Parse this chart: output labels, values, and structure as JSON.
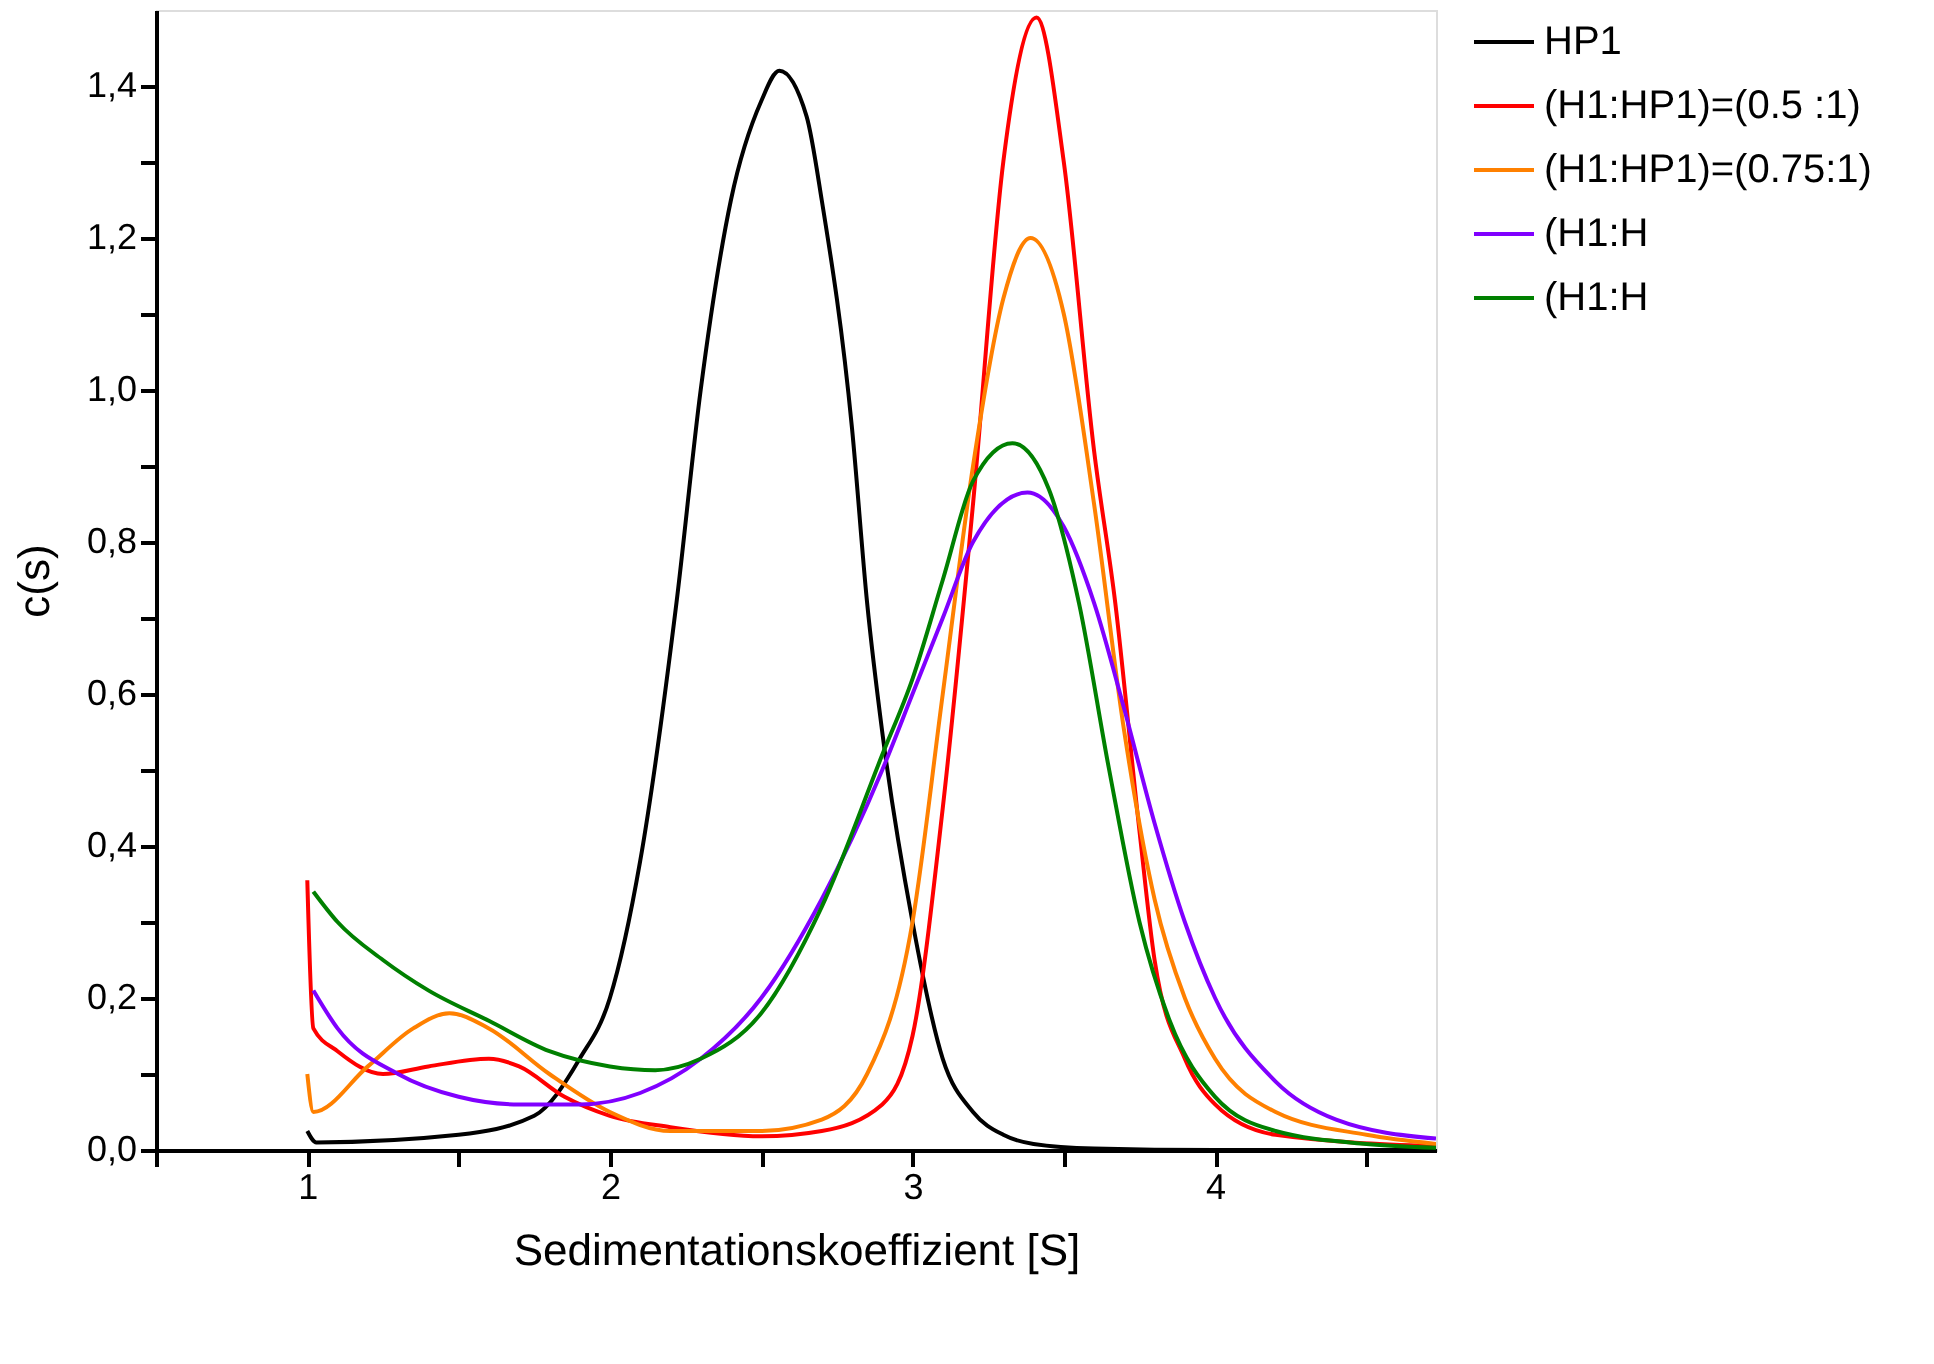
{
  "chart_data": {
    "type": "line",
    "xlabel": "Sedimentationskoeffizient [S]",
    "ylabel": "c(s)",
    "xlim": [
      0.5,
      4.73
    ],
    "ylim": [
      0,
      1.5
    ],
    "xticks": [
      {
        "value": 0.5,
        "label": null
      },
      1,
      {
        "value": 1.5,
        "label": null
      },
      2,
      {
        "value": 2.5,
        "label": null
      },
      3,
      {
        "value": 3.5,
        "label": null
      },
      4,
      {
        "value": 4.5,
        "label": null
      }
    ],
    "yticks": [
      {
        "value": 0,
        "label": "0,0"
      },
      {
        "value": 0.1,
        "label": null
      },
      {
        "value": 0.2,
        "label": "0,2"
      },
      {
        "value": 0.3,
        "label": null
      },
      {
        "value": 0.4,
        "label": "0,4"
      },
      {
        "value": 0.5,
        "label": null
      },
      {
        "value": 0.6,
        "label": "0,6"
      },
      {
        "value": 0.7,
        "label": null
      },
      {
        "value": 0.8,
        "label": "0,8"
      },
      {
        "value": 0.9,
        "label": null
      },
      {
        "value": 1.0,
        "label": "1,0"
      },
      {
        "value": 1.1,
        "label": null
      },
      {
        "value": 1.2,
        "label": "1,2"
      },
      {
        "value": 1.3,
        "label": null
      },
      {
        "value": 1.4,
        "label": "1,4"
      }
    ],
    "grid": false,
    "legend": "right",
    "line_style": "solid",
    "marker": "none",
    "series": [
      {
        "name": "HP1",
        "color": "#000000",
        "x": [
          1.0,
          1.03,
          1.5,
          1.75,
          1.9,
          2.0,
          2.1,
          2.22,
          2.3,
          2.4,
          2.5,
          2.56,
          2.65,
          2.7,
          2.8,
          2.85,
          2.9,
          3.0,
          3.1,
          3.2,
          3.3,
          3.4,
          3.6,
          4.0,
          4.73
        ],
        "values": [
          0.025,
          0.01,
          0.02,
          0.045,
          0.12,
          0.2,
          0.38,
          0.72,
          1.0,
          1.25,
          1.38,
          1.42,
          1.36,
          1.25,
          0.95,
          0.72,
          0.55,
          0.3,
          0.12,
          0.05,
          0.02,
          0.008,
          0.002,
          0.0,
          0.0
        ]
      },
      {
        "name": "(H1:HP1)=(0.5  :1)",
        "color": "#ff0000",
        "x": [
          1.0,
          1.02,
          1.1,
          1.25,
          1.4,
          1.6,
          1.7,
          1.85,
          2.0,
          2.2,
          2.5,
          2.7,
          2.9,
          3.0,
          3.1,
          3.2,
          3.3,
          3.41,
          3.5,
          3.6,
          3.67,
          3.75,
          3.8,
          3.9,
          4.0,
          4.2,
          4.73
        ],
        "values": [
          0.355,
          0.16,
          0.13,
          0.1,
          0.11,
          0.12,
          0.11,
          0.07,
          0.045,
          0.03,
          0.018,
          0.025,
          0.06,
          0.15,
          0.45,
          0.85,
          1.3,
          1.49,
          1.3,
          0.92,
          0.72,
          0.42,
          0.25,
          0.12,
          0.06,
          0.02,
          0.005
        ]
      },
      {
        "name": "(H1:HP1)=(0.75:1)",
        "color": "#ff8000",
        "x": [
          1.0,
          1.02,
          1.2,
          1.35,
          1.47,
          1.6,
          1.8,
          2.0,
          2.2,
          2.5,
          2.7,
          2.85,
          3.0,
          3.1,
          3.2,
          3.3,
          3.39,
          3.5,
          3.6,
          3.7,
          3.8,
          3.9,
          4.0,
          4.2,
          4.5,
          4.73
        ],
        "values": [
          0.1,
          0.05,
          0.11,
          0.16,
          0.18,
          0.16,
          0.1,
          0.05,
          0.025,
          0.025,
          0.04,
          0.1,
          0.3,
          0.6,
          0.9,
          1.12,
          1.2,
          1.1,
          0.85,
          0.55,
          0.33,
          0.2,
          0.12,
          0.05,
          0.02,
          0.008
        ]
      },
      {
        "name": "(H1:H",
        "color": "#8000ff",
        "x": [
          1.02,
          1.1,
          1.3,
          1.5,
          1.7,
          1.9,
          2.1,
          2.3,
          2.5,
          2.7,
          2.9,
          3.0,
          3.1,
          3.2,
          3.38,
          3.5,
          3.6,
          3.7,
          3.8,
          3.9,
          4.0,
          4.2,
          4.4,
          4.73
        ],
        "values": [
          0.21,
          0.16,
          0.1,
          0.07,
          0.06,
          0.06,
          0.075,
          0.12,
          0.2,
          0.33,
          0.5,
          0.6,
          0.7,
          0.8,
          0.865,
          0.82,
          0.72,
          0.58,
          0.43,
          0.3,
          0.2,
          0.09,
          0.04,
          0.015
        ]
      },
      {
        "name": "(H1:H",
        "color": "#008000",
        "x": [
          1.02,
          1.1,
          1.25,
          1.4,
          1.6,
          1.8,
          2.0,
          2.15,
          2.3,
          2.5,
          2.7,
          2.9,
          3.0,
          3.1,
          3.2,
          3.33,
          3.45,
          3.55,
          3.65,
          3.75,
          3.85,
          4.0,
          4.2,
          4.5,
          4.73
        ],
        "values": [
          0.34,
          0.3,
          0.25,
          0.21,
          0.17,
          0.13,
          0.11,
          0.105,
          0.12,
          0.18,
          0.32,
          0.52,
          0.62,
          0.75,
          0.88,
          0.93,
          0.87,
          0.72,
          0.5,
          0.3,
          0.17,
          0.07,
          0.025,
          0.008,
          0.003
        ]
      }
    ]
  }
}
